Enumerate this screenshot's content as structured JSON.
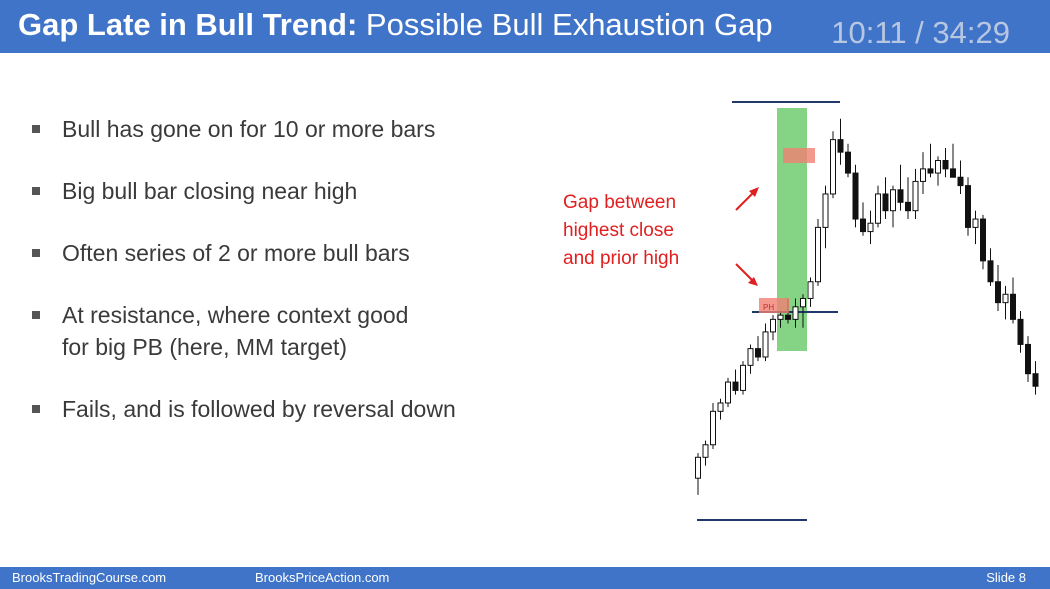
{
  "header": {
    "title_bold": "Gap Late in Bull Trend:",
    "title_rest": " Possible Bull Exhaustion Gap",
    "timer": "10:11 / 34:29"
  },
  "bullets": [
    {
      "line1": "Bull has gone on for 10 or more bars",
      "line2": ""
    },
    {
      "line1": "Big bull bar closing near high",
      "line2": ""
    },
    {
      "line1": "Often series of 2 or more bull bars",
      "line2": ""
    },
    {
      "line1": "At resistance, where context good",
      "line2": "for big PB (here, MM target)"
    },
    {
      "line1": "Fails, and is followed by reversal down",
      "line2": ""
    }
  ],
  "annotation": {
    "line1": "Gap between",
    "line2": "highest close",
    "line3": "and prior high"
  },
  "chart_label_small": "PH",
  "footer": {
    "left": "BrooksTradingCourse.com",
    "center": "BrooksPriceAction.com",
    "right": "Slide  8"
  },
  "colors": {
    "accent": "#3f74c8",
    "annotation": "#e02020",
    "highlight": "#5cc65c",
    "gap_box": "#f08070",
    "line": "#1f3a6a"
  },
  "chart_data": {
    "type": "candlestick",
    "ohlc": [
      [
        10,
        16,
        6,
        15
      ],
      [
        15,
        19,
        13,
        18
      ],
      [
        18,
        28,
        17,
        26
      ],
      [
        26,
        29,
        24,
        28
      ],
      [
        28,
        34,
        27,
        33
      ],
      [
        33,
        36,
        30,
        31
      ],
      [
        31,
        38,
        30,
        37
      ],
      [
        37,
        42,
        35,
        41
      ],
      [
        41,
        44,
        38,
        39
      ],
      [
        39,
        47,
        38,
        45
      ],
      [
        45,
        49,
        43,
        48
      ],
      [
        48,
        50,
        46,
        49
      ],
      [
        49,
        53,
        47,
        48
      ],
      [
        48,
        53,
        46,
        51
      ],
      [
        51,
        54,
        46,
        53
      ],
      [
        53,
        58,
        51,
        57
      ],
      [
        57,
        72,
        56,
        70
      ],
      [
        70,
        80,
        65,
        78
      ],
      [
        78,
        93,
        77,
        91
      ],
      [
        91,
        96,
        85,
        88
      ],
      [
        88,
        90,
        82,
        83
      ],
      [
        83,
        85,
        70,
        72
      ],
      [
        72,
        76,
        68,
        69
      ],
      [
        69,
        74,
        66,
        71
      ],
      [
        71,
        80,
        70,
        78
      ],
      [
        78,
        82,
        72,
        74
      ],
      [
        74,
        80,
        70,
        79
      ],
      [
        79,
        85,
        74,
        76
      ],
      [
        76,
        82,
        72,
        74
      ],
      [
        74,
        84,
        72,
        81
      ],
      [
        81,
        88,
        78,
        84
      ],
      [
        84,
        90,
        82,
        83
      ],
      [
        83,
        87,
        80,
        86
      ],
      [
        86,
        89,
        82,
        84
      ],
      [
        84,
        90,
        83,
        82
      ],
      [
        82,
        86,
        78,
        80
      ],
      [
        80,
        82,
        68,
        70
      ],
      [
        70,
        74,
        66,
        72
      ],
      [
        72,
        73,
        60,
        62
      ],
      [
        62,
        65,
        56,
        57
      ],
      [
        57,
        61,
        50,
        52
      ],
      [
        52,
        56,
        48,
        54
      ],
      [
        54,
        58,
        47,
        48
      ],
      [
        48,
        50,
        40,
        42
      ],
      [
        42,
        44,
        33,
        35
      ],
      [
        35,
        38,
        30,
        32
      ]
    ],
    "ylim": [
      0,
      100
    ],
    "marker_high": 100,
    "marker_mid": 53,
    "marker_low": 0
  }
}
